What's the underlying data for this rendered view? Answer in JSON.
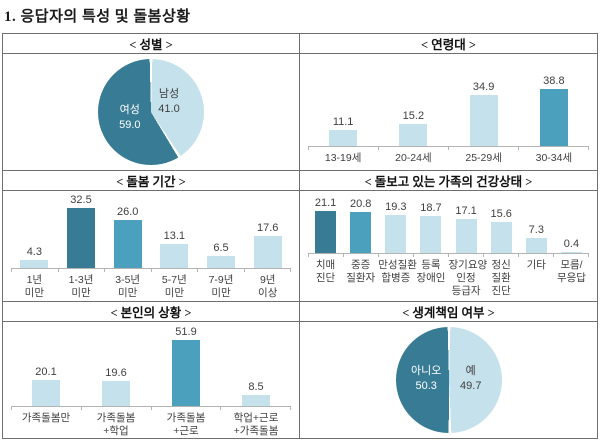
{
  "title": "1. 응답자의 특성 및 돌봄상황",
  "colors": {
    "light": "#c5e1ec",
    "medium": "#4aa0bd",
    "dark": "#377b94",
    "axis": "#b3b3b3",
    "value_text": "#3f3f3f",
    "text_on_dark": "#ffffff",
    "text_on_light": "#3f3f3f",
    "border": "#6f6f6f"
  },
  "panels": [
    {
      "title": "< 성별 >"
    },
    {
      "title": "< 연령대 >"
    },
    {
      "title": "< 돌봄 기간 >"
    },
    {
      "title": "< 돌보고 있는 가족의 건강상태 >"
    },
    {
      "title": "< 본인의 상황 >"
    },
    {
      "title": "< 생계책임 여부 >"
    }
  ],
  "chart_data": [
    {
      "type": "pie",
      "title": "< 성별 >",
      "slices": [
        {
          "label": "남성",
          "value": 41.0,
          "color": "light"
        },
        {
          "label": "여성",
          "value": 59.0,
          "color": "dark"
        }
      ]
    },
    {
      "type": "bar",
      "title": "< 연령대 >",
      "categories": [
        [
          "13-19세"
        ],
        [
          "20-24세"
        ],
        [
          "25-29세"
        ],
        [
          "30-34세"
        ]
      ],
      "values": [
        11.1,
        15.2,
        34.9,
        38.8
      ],
      "bar_colors": [
        "light",
        "light",
        "light",
        "medium"
      ],
      "ylim": [
        0,
        40
      ]
    },
    {
      "type": "bar",
      "title": "< 돌봄 기간 >",
      "categories": [
        [
          "1년",
          "미만"
        ],
        [
          "1-3년",
          "미만"
        ],
        [
          "3-5년",
          "미만"
        ],
        [
          "5-7년",
          "미만"
        ],
        [
          "7-9년",
          "미만"
        ],
        [
          "9년",
          "이상"
        ]
      ],
      "values": [
        4.3,
        32.5,
        26.0,
        13.1,
        6.5,
        17.6
      ],
      "bar_colors": [
        "light",
        "dark",
        "medium",
        "light",
        "light",
        "light"
      ],
      "ylim": [
        0,
        35
      ]
    },
    {
      "type": "bar",
      "title": "< 돌보고 있는 가족의 건강상태 >",
      "categories": [
        [
          "치매",
          "진단"
        ],
        [
          "중증",
          "질환자"
        ],
        [
          "만성질환",
          "합병증"
        ],
        [
          "등록",
          "장애인"
        ],
        [
          "장기요양",
          "인정",
          "등급자"
        ],
        [
          "정신",
          "질환",
          "진단"
        ],
        [
          "기타"
        ],
        [
          "모름/",
          "무응답"
        ]
      ],
      "values": [
        21.1,
        20.8,
        19.3,
        18.7,
        17.1,
        15.6,
        7.3,
        0.4
      ],
      "bar_colors": [
        "dark",
        "medium",
        "light",
        "light",
        "light",
        "light",
        "light",
        "light"
      ],
      "ylim": [
        0,
        22
      ]
    },
    {
      "type": "bar",
      "title": "< 본인의 상황 >",
      "categories": [
        [
          "가족돌봄만"
        ],
        [
          "가족돌봄",
          "+학업"
        ],
        [
          "가족돌봄",
          "+근로"
        ],
        [
          "학업+근로",
          "+가족돌봄"
        ]
      ],
      "values": [
        20.1,
        19.6,
        51.9,
        8.5
      ],
      "bar_colors": [
        "light",
        "light",
        "medium",
        "light"
      ],
      "ylim": [
        0,
        55
      ]
    },
    {
      "type": "pie",
      "title": "< 생계책임 여부 >",
      "slices": [
        {
          "label": "예",
          "value": 49.7,
          "color": "light"
        },
        {
          "label": "아니오",
          "value": 50.3,
          "color": "dark"
        }
      ]
    }
  ]
}
